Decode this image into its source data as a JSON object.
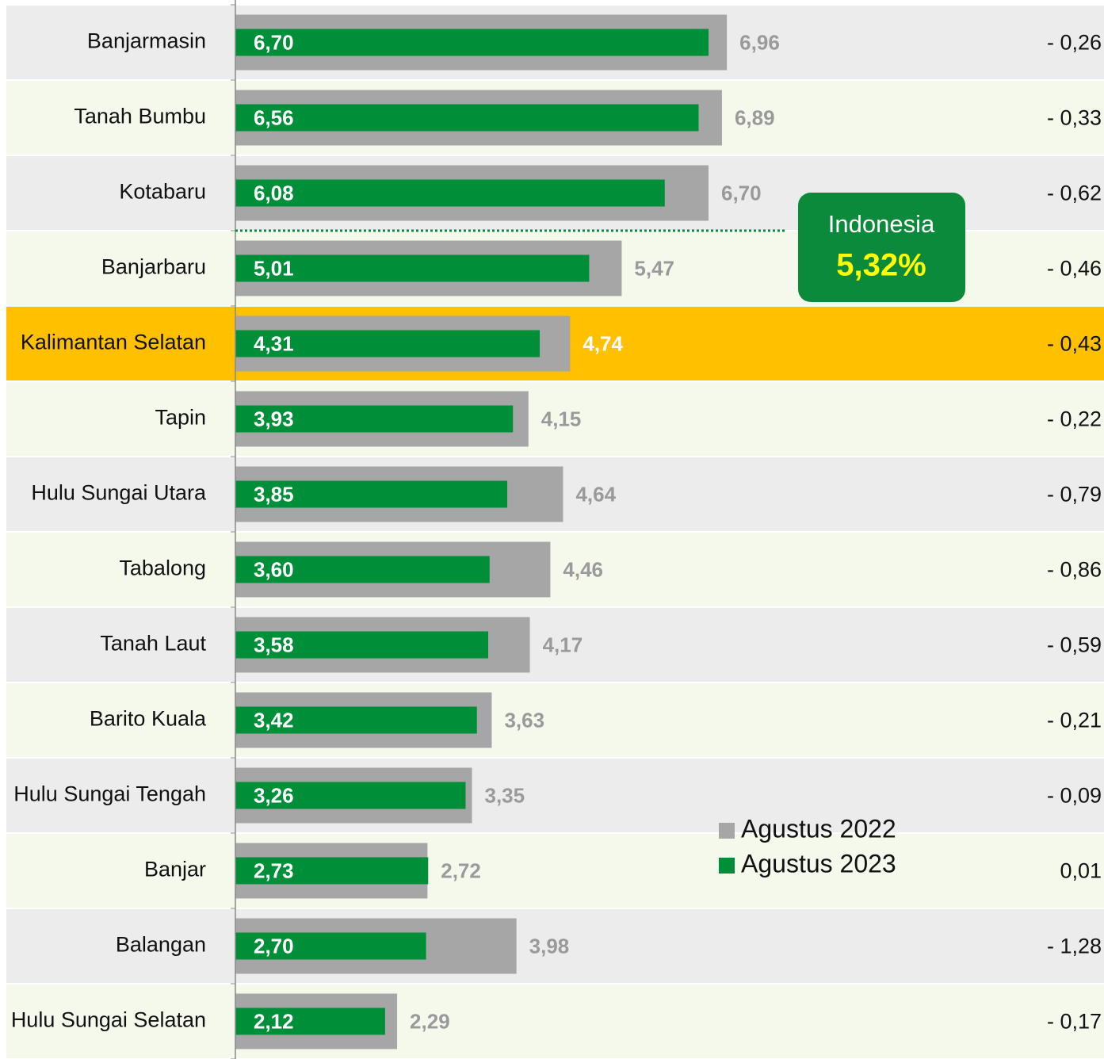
{
  "chart_data": {
    "type": "bar",
    "categories": [
      "Banjarmasin",
      "Tanah Bumbu",
      "Kotabaru",
      "Banjarbaru",
      "Kalimantan Selatan",
      "Tapin",
      "Hulu Sungai Utara",
      "Tabalong",
      "Tanah Laut",
      "Barito Kuala",
      "Hulu Sungai Tengah",
      "Banjar",
      "Balangan",
      "Hulu Sungai Selatan"
    ],
    "series": [
      {
        "name": "Agustus 2022",
        "color": "#a6a6a6",
        "values": [
          6.96,
          6.89,
          6.7,
          5.47,
          4.74,
          4.15,
          4.64,
          4.46,
          4.17,
          3.63,
          3.35,
          2.72,
          3.98,
          2.29
        ],
        "value_labels": [
          "6,96",
          "6,89",
          "6,70",
          "5,47",
          "4,74",
          "4,15",
          "4,64",
          "4,46",
          "4,17",
          "3,63",
          "3,35",
          "2,72",
          "3,98",
          "2,29"
        ]
      },
      {
        "name": "Agustus 2023",
        "color": "#008f39",
        "values": [
          6.7,
          6.56,
          6.08,
          5.01,
          4.31,
          3.93,
          3.85,
          3.6,
          3.58,
          3.42,
          3.26,
          2.73,
          2.7,
          2.12
        ],
        "value_labels": [
          "6,70",
          "6,56",
          "6,08",
          "5,01",
          "4,31",
          "3,93",
          "3,85",
          "3,60",
          "3,58",
          "3,42",
          "3,26",
          "2,73",
          "2,70",
          "2,12"
        ]
      }
    ],
    "changes": [
      -0.26,
      -0.33,
      -0.62,
      -0.46,
      -0.43,
      -0.22,
      -0.79,
      -0.86,
      -0.59,
      -0.21,
      -0.09,
      0.01,
      -1.28,
      -0.17
    ],
    "change_labels": [
      "- 0,26",
      "- 0,33",
      "- 0,62",
      "- 0,46",
      "- 0,43",
      "- 0,22",
      "- 0,79",
      "- 0,86",
      "- 0,59",
      "- 0,21",
      "- 0,09",
      "0,01",
      "- 1,28",
      "- 0,17"
    ],
    "highlight": "Kalimantan Selatan",
    "highlight_color": "#ffc000",
    "reference": {
      "label": "Indonesia",
      "value": 5.32,
      "value_label": "5,32%"
    },
    "xlim": [
      0,
      12.3
    ]
  }
}
